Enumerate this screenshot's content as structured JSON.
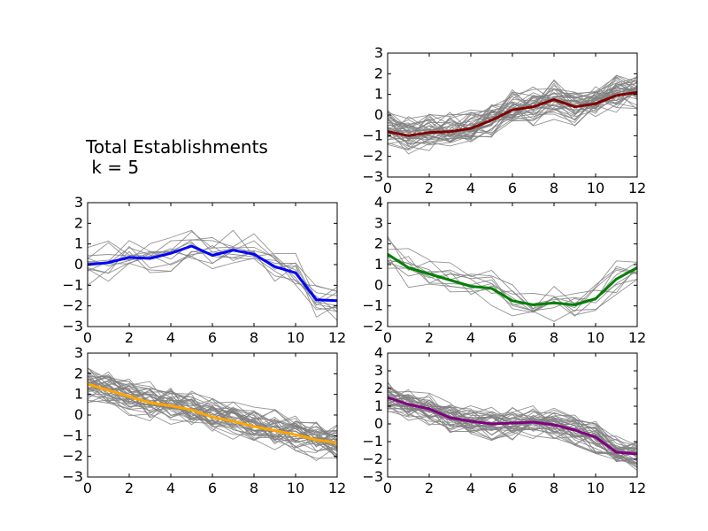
{
  "title": {
    "line1": "Total Establishments",
    "line2": " k = 5"
  },
  "chart_data": [
    {
      "type": "line",
      "position": "top-right",
      "xlim": [
        0,
        12
      ],
      "ylim": [
        -3,
        3
      ],
      "xticks": [
        0,
        2,
        4,
        6,
        8,
        10,
        12
      ],
      "yticks": [
        3,
        2,
        1,
        0,
        -1,
        -2,
        -3
      ],
      "centroid_color": "#800000",
      "member_color": "#808080",
      "member_count": 40,
      "centroid": [
        -0.8,
        -1.0,
        -0.85,
        -0.8,
        -0.65,
        -0.25,
        0.25,
        0.4,
        0.75,
        0.4,
        0.55,
        0.95,
        1.1
      ]
    },
    {
      "type": "line",
      "position": "middle-left",
      "xlim": [
        0,
        12
      ],
      "ylim": [
        -3,
        3
      ],
      "xticks": [
        0,
        2,
        4,
        6,
        8,
        10,
        12
      ],
      "yticks": [
        3,
        2,
        1,
        0,
        -1,
        -2,
        -3
      ],
      "centroid_color": "#0000ff",
      "member_color": "#808080",
      "member_count": 12,
      "centroid": [
        0.0,
        0.1,
        0.35,
        0.3,
        0.55,
        0.9,
        0.45,
        0.7,
        0.5,
        -0.1,
        -0.4,
        -1.7,
        -1.75
      ]
    },
    {
      "type": "line",
      "position": "middle-right",
      "xlim": [
        0,
        12
      ],
      "ylim": [
        -2,
        4
      ],
      "xticks": [
        0,
        2,
        4,
        6,
        8,
        10,
        12
      ],
      "yticks": [
        4,
        3,
        2,
        1,
        0,
        -1,
        -2
      ],
      "centroid_color": "#008000",
      "member_color": "#808080",
      "member_count": 10,
      "centroid": [
        1.5,
        0.85,
        0.55,
        0.25,
        -0.05,
        -0.15,
        -0.75,
        -0.95,
        -0.85,
        -0.95,
        -0.65,
        0.3,
        0.85
      ]
    },
    {
      "type": "line",
      "position": "bottom-left",
      "xlim": [
        0,
        12
      ],
      "ylim": [
        -3,
        3
      ],
      "xticks": [
        0,
        2,
        4,
        6,
        8,
        10,
        12
      ],
      "yticks": [
        3,
        2,
        1,
        0,
        -1,
        -2,
        -3
      ],
      "centroid_color": "#ffa500",
      "member_color": "#808080",
      "member_count": 40,
      "centroid": [
        1.5,
        1.2,
        0.9,
        0.6,
        0.45,
        0.25,
        -0.1,
        -0.3,
        -0.55,
        -0.75,
        -0.95,
        -1.2,
        -1.35
      ]
    },
    {
      "type": "line",
      "position": "bottom-right",
      "xlim": [
        0,
        12
      ],
      "ylim": [
        -3,
        4
      ],
      "xticks": [
        0,
        2,
        4,
        6,
        8,
        10,
        12
      ],
      "yticks": [
        4,
        3,
        2,
        1,
        0,
        -1,
        -2,
        -3
      ],
      "centroid_color": "#800080",
      "member_color": "#808080",
      "member_count": 40,
      "centroid": [
        1.5,
        1.1,
        0.85,
        0.35,
        0.15,
        0.0,
        0.05,
        0.1,
        -0.05,
        -0.35,
        -0.75,
        -1.6,
        -1.7
      ]
    }
  ]
}
